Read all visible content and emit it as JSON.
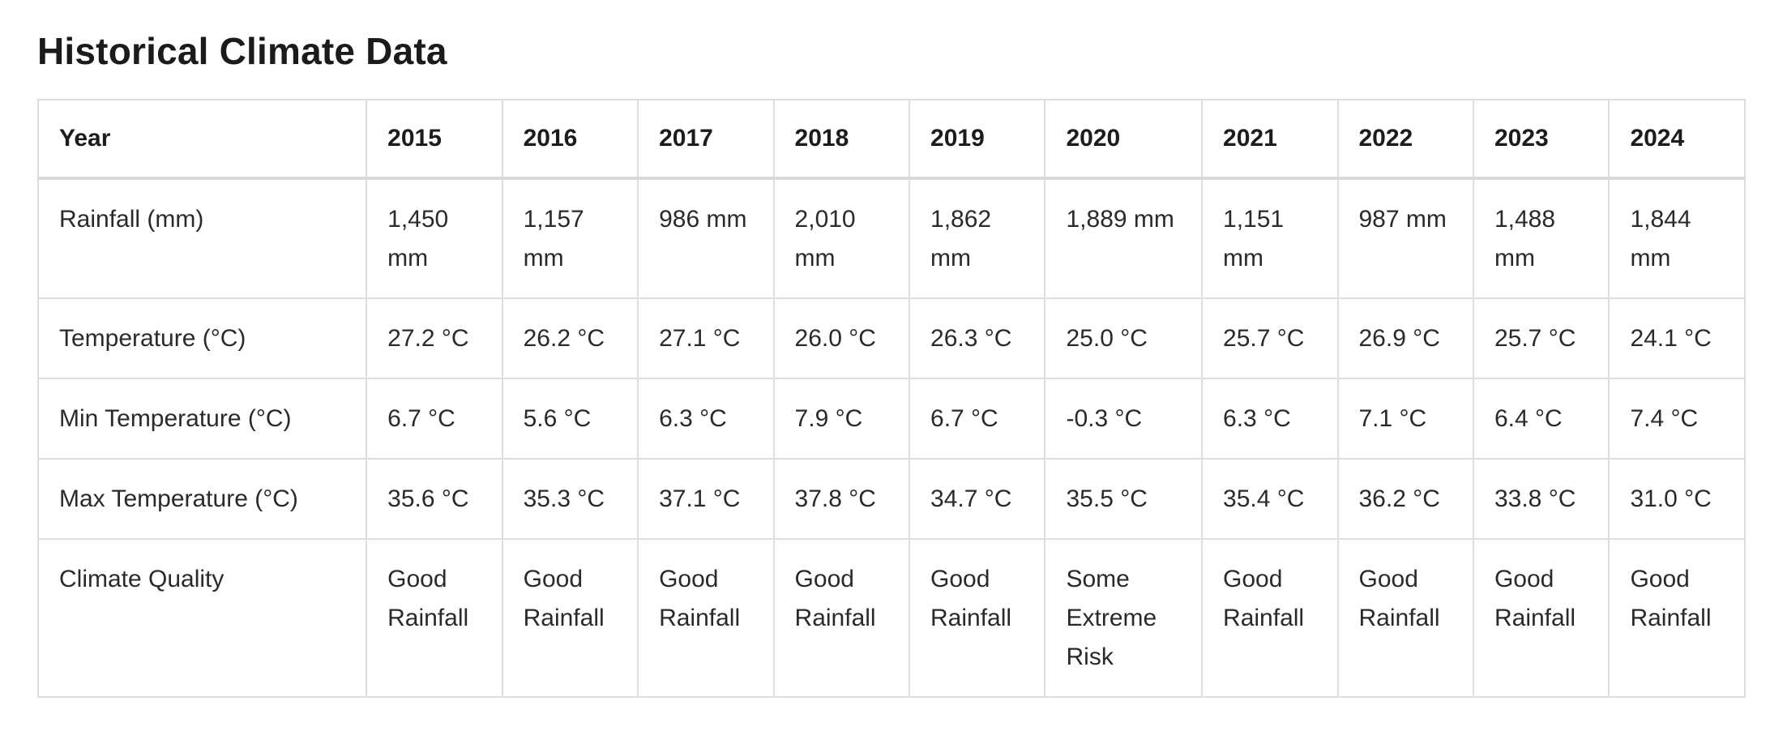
{
  "title": "Historical Climate Data",
  "table": {
    "header": [
      "Year",
      "2015",
      "2016",
      "2017",
      "2018",
      "2019",
      "2020",
      "2021",
      "2022",
      "2023",
      "2024"
    ],
    "rows": [
      {
        "label": "Rainfall (mm)",
        "cells": [
          "1,450 mm",
          "1,157 mm",
          "986 mm",
          "2,010 mm",
          "1,862 mm",
          "1,889 mm",
          "1,151 mm",
          "987 mm",
          "1,488 mm",
          "1,844 mm"
        ]
      },
      {
        "label": "Temperature (°C)",
        "cells": [
          "27.2 °C",
          "26.2 °C",
          "27.1 °C",
          "26.0 °C",
          "26.3 °C",
          "25.0 °C",
          "25.7 °C",
          "26.9 °C",
          "25.7 °C",
          "24.1 °C"
        ]
      },
      {
        "label": "Min Temperature (°C)",
        "cells": [
          "6.7 °C",
          "5.6 °C",
          "6.3 °C",
          "7.9 °C",
          "6.7 °C",
          "-0.3 °C",
          "6.3 °C",
          "7.1 °C",
          "6.4 °C",
          "7.4 °C"
        ]
      },
      {
        "label": "Max Temperature (°C)",
        "cells": [
          "35.6 °C",
          "35.3 °C",
          "37.1 °C",
          "37.8 °C",
          "34.7 °C",
          "35.5 °C",
          "35.4 °C",
          "36.2 °C",
          "33.8 °C",
          "31.0 °C"
        ]
      },
      {
        "label": "Climate Quality",
        "cells": [
          "Good Rainfall",
          "Good Rainfall",
          "Good Rainfall",
          "Good Rainfall",
          "Good Rainfall",
          "Some Extreme Risk",
          "Good Rainfall",
          "Good Rainfall",
          "Good Rainfall",
          "Good Rainfall"
        ]
      }
    ]
  }
}
